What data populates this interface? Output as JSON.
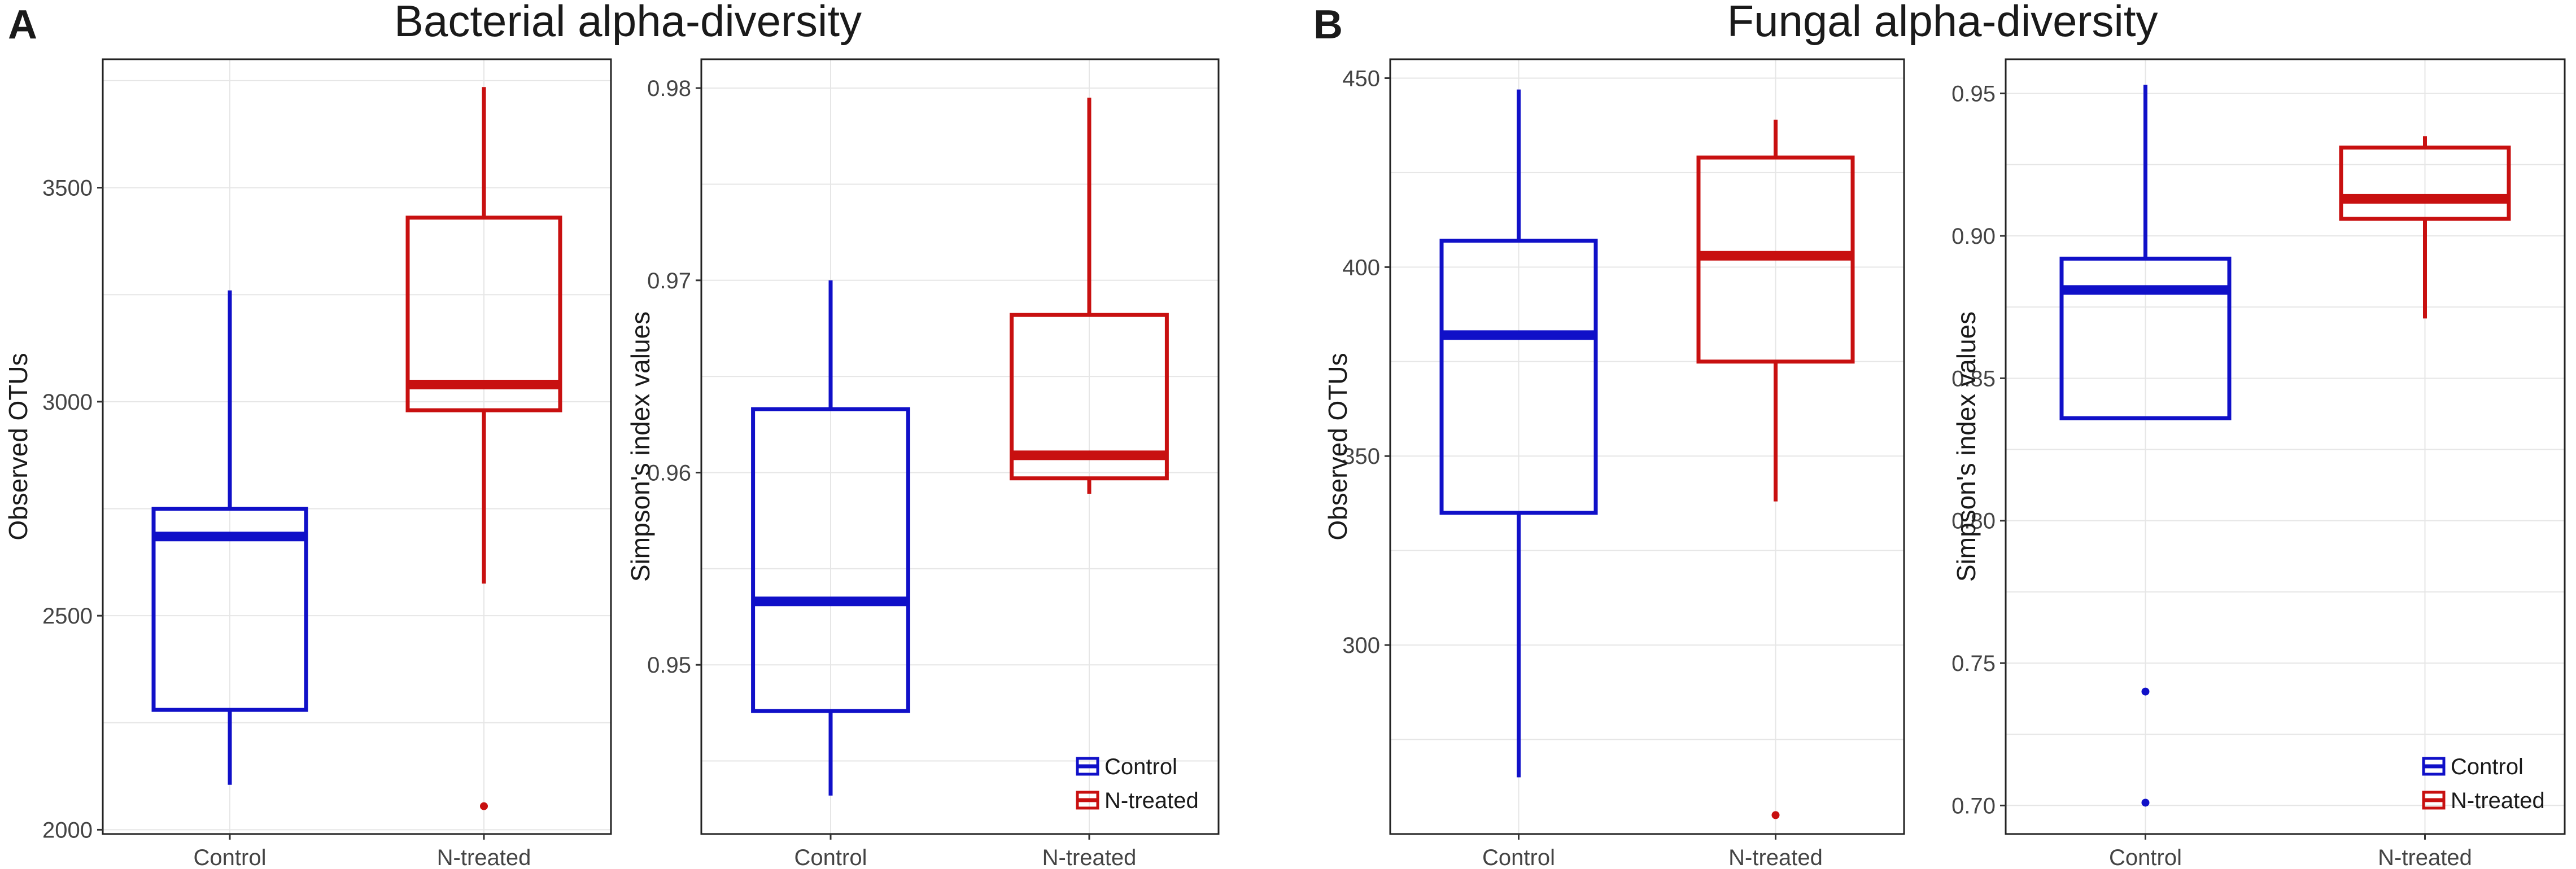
{
  "figure": {
    "panels": [
      {
        "letter": "A",
        "title": "Bacterial alpha-diversity"
      },
      {
        "letter": "B",
        "title": "Fungal alpha-diversity"
      }
    ]
  },
  "chart_data": [
    {
      "type": "box",
      "panel": "A",
      "ylabel": "Observed OTUs",
      "categories": [
        "Control",
        "N-treated"
      ],
      "ylim": [
        1990,
        3800
      ],
      "yticks": [
        2000,
        2500,
        3000,
        3500
      ],
      "ytick_labels": [
        "2000",
        "2500",
        "3000",
        "3500"
      ],
      "grid": true,
      "legend": null,
      "boxes": [
        {
          "group": "Control",
          "color": "#1010c8",
          "min": 2105,
          "q1": 2280,
          "median": 2685,
          "q3": 2750,
          "max": 3260,
          "outliers": []
        },
        {
          "group": "N-treated",
          "color": "#c81010",
          "min": 2575,
          "q1": 2980,
          "median": 3040,
          "q3": 3430,
          "max": 3735,
          "outliers": [
            2055
          ]
        }
      ]
    },
    {
      "type": "box",
      "panel": "A",
      "ylabel": "Simpson's index values",
      "categories": [
        "Control",
        "N-treated"
      ],
      "ylim": [
        0.9412,
        0.9815
      ],
      "yticks": [
        0.95,
        0.96,
        0.97,
        0.98
      ],
      "ytick_labels": [
        "0.95",
        "0.96",
        "0.97",
        "0.98"
      ],
      "grid": true,
      "legend": {
        "position": "bottom-right",
        "entries": [
          "Control",
          "N-treated"
        ]
      },
      "boxes": [
        {
          "group": "Control",
          "color": "#1010c8",
          "min": 0.9432,
          "q1": 0.9476,
          "median": 0.9533,
          "q3": 0.9633,
          "max": 0.97,
          "outliers": []
        },
        {
          "group": "N-treated",
          "color": "#c81010",
          "min": 0.9589,
          "q1": 0.9597,
          "median": 0.9609,
          "q3": 0.9682,
          "max": 0.9795,
          "outliers": []
        }
      ]
    },
    {
      "type": "box",
      "panel": "B",
      "ylabel": "Observed OTUs",
      "categories": [
        "Control",
        "N-treated"
      ],
      "ylim": [
        250,
        455
      ],
      "yticks": [
        300,
        350,
        400,
        450
      ],
      "ytick_labels": [
        "300",
        "350",
        "400",
        "450"
      ],
      "grid": true,
      "legend": null,
      "boxes": [
        {
          "group": "Control",
          "color": "#1010c8",
          "min": 265,
          "q1": 335,
          "median": 382,
          "q3": 407,
          "max": 447,
          "outliers": []
        },
        {
          "group": "N-treated",
          "color": "#c81010",
          "min": 338,
          "q1": 375,
          "median": 403,
          "q3": 429,
          "max": 439,
          "outliers": [
            255
          ]
        }
      ]
    },
    {
      "type": "box",
      "panel": "B",
      "ylabel": "Simpson's index values",
      "categories": [
        "Control",
        "N-treated"
      ],
      "ylim": [
        0.69,
        0.962
      ],
      "yticks": [
        0.7,
        0.75,
        0.8,
        0.85,
        0.9,
        0.95
      ],
      "ytick_labels": [
        "0.70",
        "0.75",
        "0.80",
        "0.85",
        "0.90",
        "0.95"
      ],
      "grid": true,
      "legend": {
        "position": "bottom-right",
        "entries": [
          "Control",
          "N-treated"
        ]
      },
      "boxes": [
        {
          "group": "Control",
          "color": "#1010c8",
          "min": 0.836,
          "q1": 0.836,
          "median": 0.881,
          "q3": 0.892,
          "max": 0.953,
          "outliers": [
            0.74,
            0.701
          ]
        },
        {
          "group": "N-treated",
          "color": "#c81010",
          "min": 0.871,
          "q1": 0.906,
          "median": 0.913,
          "q3": 0.931,
          "max": 0.935,
          "outliers": []
        }
      ]
    }
  ]
}
